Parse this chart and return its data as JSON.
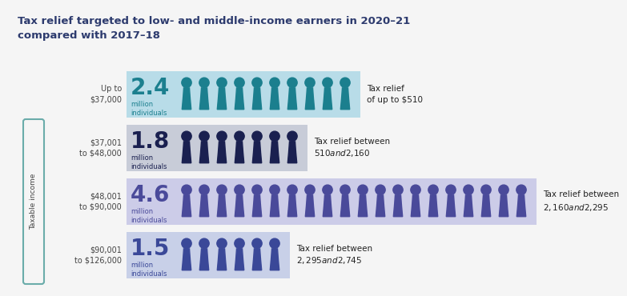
{
  "title": "Tax relief targeted to low- and middle-income earners in 2020–21\ncompared with 2017–18",
  "title_fontsize": 9.5,
  "title_color": "#2d3b6e",
  "background_color": "#f5f5f5",
  "rows": [
    {
      "income_label": "Up to\n$37,000",
      "amount": "2.4",
      "unit": "million\nindividuals",
      "num_icons": 10,
      "tax_relief": "Tax relief\nof up to $510",
      "bg_color": "#b8dce8",
      "icon_color": "#1b7f8e",
      "amount_color": "#1b7f8e",
      "relief_far_right": false
    },
    {
      "income_label": "$37,001\nto $48,000",
      "amount": "1.8",
      "unit": "million\nindividuals",
      "num_icons": 7,
      "tax_relief": "Tax relief between\n$510 and $2,160",
      "bg_color": "#c8ccd8",
      "icon_color": "#1a2050",
      "amount_color": "#1a2050",
      "relief_far_right": false
    },
    {
      "income_label": "$48,001\nto $90,000",
      "amount": "4.6",
      "unit": "million\nindividuals",
      "num_icons": 20,
      "tax_relief": "Tax relief between\n$2,160 and $2,295",
      "bg_color": "#cccce8",
      "icon_color": "#4a4a9a",
      "amount_color": "#4a4a9a",
      "relief_far_right": true
    },
    {
      "income_label": "$90,001\nto $126,000",
      "amount": "1.5",
      "unit": "million\nindividuals",
      "num_icons": 6,
      "tax_relief": "Tax relief between\n$2,295 and $2,745",
      "bg_color": "#c8d0e8",
      "icon_color": "#3a4898",
      "amount_color": "#3a4898",
      "relief_far_right": false
    }
  ],
  "taxable_income_label": "Taxable income",
  "bracket_color": "#6aacaa"
}
